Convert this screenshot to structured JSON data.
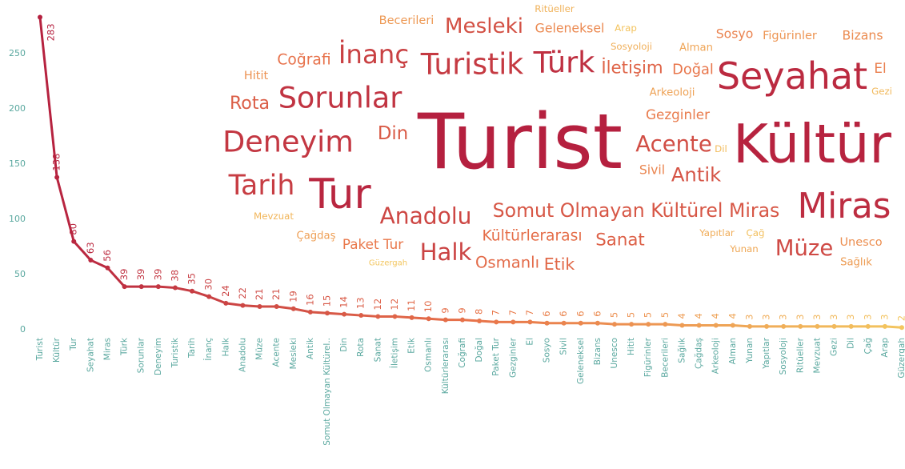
{
  "chart_data": {
    "type": "line",
    "categories": [
      "Turist",
      "Kültür",
      "Tur",
      "Seyahat",
      "Miras",
      "Türk",
      "Sorunlar",
      "Deneyim",
      "Turistik",
      "Tarih",
      "İnanç",
      "Halk",
      "Anadolu",
      "Müze",
      "Acente",
      "Mesleki",
      "Antik",
      "Somut Olmayan Kültürel..",
      "Din",
      "Rota",
      "Sanat",
      "İletişim",
      "Etik",
      "Osmanlı",
      "Kültürlerarası",
      "Coğrafi",
      "Doğal",
      "Paket Tur",
      "Gezginler",
      "El",
      "Sosyo",
      "Sivil",
      "Geleneksel",
      "Bizans",
      "Unesco",
      "Hitit",
      "Figürinler",
      "Becerileri",
      "Sağlık",
      "Çağdaş",
      "Arkeoloji",
      "Alman",
      "Yunan",
      "Yapıtlar",
      "Sosyoloji",
      "Ritüeller",
      "Mevzuat",
      "Gezi",
      "Dil",
      "Çağ",
      "Arap",
      "Güzergah"
    ],
    "values": [
      283,
      138,
      80,
      63,
      56,
      39,
      39,
      39,
      38,
      35,
      30,
      24,
      22,
      21,
      21,
      19,
      16,
      15,
      14,
      13,
      12,
      12,
      11,
      10,
      9,
      9,
      8,
      7,
      7,
      7,
      6,
      6,
      6,
      6,
      5,
      5,
      5,
      5,
      4,
      4,
      4,
      4,
      3,
      3,
      3,
      3,
      3,
      3,
      3,
      3,
      3,
      2
    ],
    "word_cloud_labels": [
      "Turist",
      "Kültür",
      "Tur",
      "Seyahat",
      "Miras",
      "Türk",
      "Sorunlar",
      "Deneyim",
      "Turistik",
      "Tarih",
      "İnanç",
      "Halk",
      "Anadolu",
      "Müze",
      "Acente",
      "Mesleki",
      "Antik",
      "Somut Olmayan Kültürel Miras",
      "Din",
      "Rota",
      "Sanat",
      "İletişim",
      "Etik",
      "Osmanlı",
      "Kültürlerarası",
      "Coğrafi",
      "Doğal",
      "Paket Tur",
      "Gezginler",
      "El",
      "Sosyo",
      "Sivil",
      "Geleneksel",
      "Bizans",
      "Unesco",
      "Hitit",
      "Figürinler",
      "Becerileri",
      "Sağlık",
      "Çağdaş",
      "Arkeoloji",
      "Alman",
      "Yunan",
      "Yapıtlar",
      "Sosyoloji",
      "Ritüeller",
      "Mevzuat",
      "Gezi",
      "Dil",
      "Çağ",
      "Arap",
      "Güzergah"
    ],
    "colors": [
      "#b5203f",
      "#e8734a",
      "#f3c65f"
    ],
    "ylim": [
      0,
      290
    ],
    "yticks": [
      0,
      50,
      100,
      150,
      200,
      250
    ],
    "grid": false
  }
}
